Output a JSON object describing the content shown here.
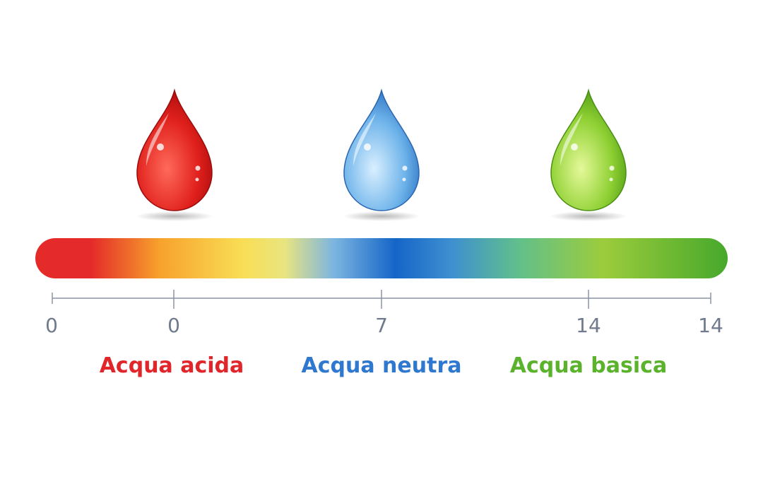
{
  "scale": {
    "gradient_colors": [
      "#e52a2a",
      "#f7a22c",
      "#f9de55",
      "#7db6e0",
      "#1565c8",
      "#62c08a",
      "#9ccc3c",
      "#47a82c"
    ],
    "ticks": [
      "0",
      "0",
      "7",
      "14",
      "14"
    ]
  },
  "zones": [
    {
      "label": "Acqua acida",
      "color": "#e0262b",
      "drop": "red"
    },
    {
      "label": "Acqua neutra",
      "color": "#2f78cf",
      "drop": "blue"
    },
    {
      "label": "Acqua basica",
      "color": "#5bb22c",
      "drop": "green"
    }
  ],
  "axis_color": "#8a93a3"
}
